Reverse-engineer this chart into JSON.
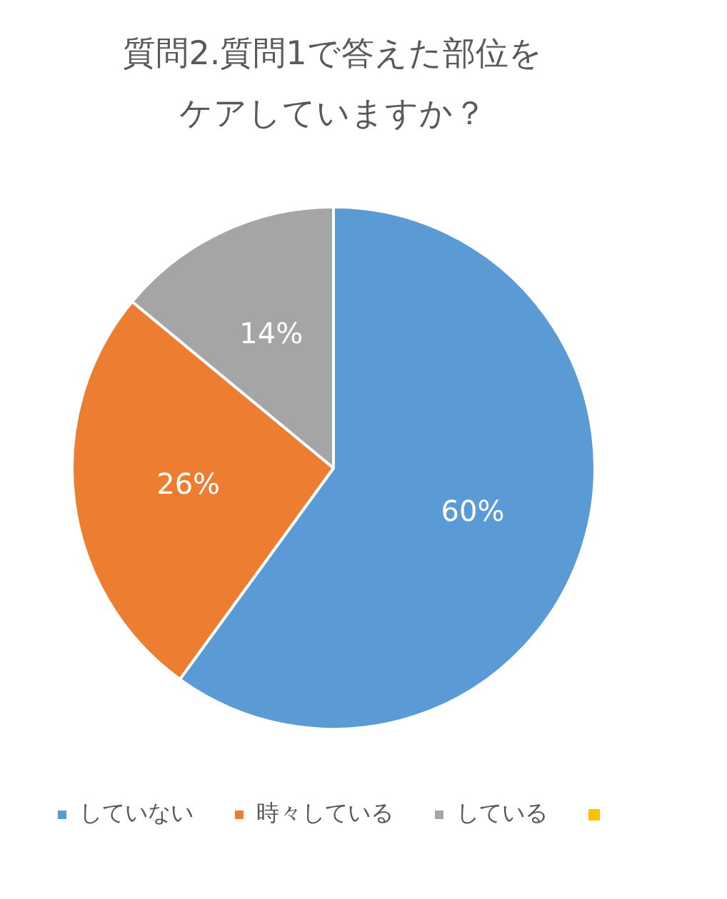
{
  "chart_data": {
    "type": "pie",
    "title": "質問2.質問1で答えた部位をケアしていますか？",
    "categories": [
      "していない",
      "時々している",
      "している",
      null
    ],
    "values": [
      60,
      26,
      14,
      0
    ],
    "colors": [
      "#5b9bd5",
      "#ed7d31",
      "#a5a5a5",
      "#ffc000"
    ],
    "value_labels": [
      "60%",
      "26%",
      "14%",
      null
    ],
    "legend": "bottom"
  }
}
